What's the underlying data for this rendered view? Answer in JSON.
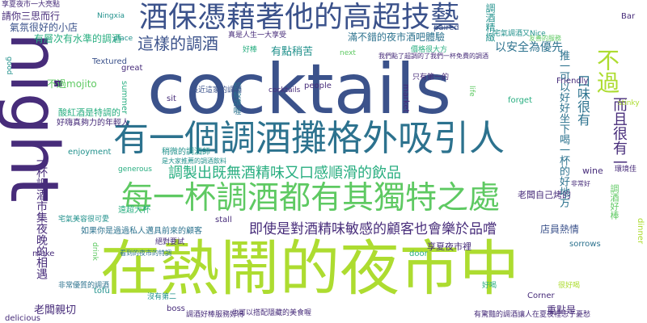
{
  "palette": {
    "purple": "#440154",
    "indigo": "#472c7a",
    "blue": "#3b528b",
    "steel": "#2c728e",
    "teal": "#21918c",
    "green": "#28ae80",
    "lime": "#5ec962",
    "yellowgreen": "#addc30",
    "yellow": "#fde725"
  },
  "words": [
    {
      "text": "cocktails",
      "color": "#3b528b"
    },
    {
      "text": "night",
      "color": "#472c7a"
    },
    {
      "text": "在熱鬧的夜市中",
      "color": "#addc30"
    },
    {
      "text": "每一杯調酒都有其獨特之處",
      "color": "#5ec962"
    },
    {
      "text": "有一個調酒攤格外吸引人",
      "color": "#2c728e"
    },
    {
      "text": "酒保憑藉著他的高超技藝",
      "color": "#3b528b"
    },
    {
      "text": "調製出既無酒精味又口感順滑的飲品",
      "color": "#28ae80"
    },
    {
      "text": "即使是對酒精味敏感的顧客也會樂於品嚐",
      "color": "#472c7a"
    },
    {
      "text": "這樣的調酒",
      "color": "#3b528b"
    },
    {
      "text": "不過",
      "color": "#addc30"
    },
    {
      "text": "有點稍苦",
      "color": "#21918c"
    },
    {
      "text": "滿不錯的夜市酒吧體驗",
      "color": "#2c728e"
    },
    {
      "text": "以安全為優先",
      "color": "#2c728e"
    },
    {
      "text": "有層次有水準的調酒",
      "color": "#28ae80"
    },
    {
      "text": "請你三思而行",
      "color": "#472c7a"
    },
    {
      "text": "氣氛很好的小店",
      "color": "#3b528b"
    },
    {
      "text": "不過mojito",
      "color": "#5ec962"
    },
    {
      "text": "酸紅酒是特調的",
      "color": "#28ae80"
    },
    {
      "text": "好嗨真夠力的年輕人",
      "color": "#472c7a"
    },
    {
      "text": "真是人生一大享受",
      "color": "#472c7a"
    },
    {
      "text": "調酒精緻",
      "color": "#21918c"
    },
    {
      "text": "調酒好棒",
      "color": "#5ec962"
    },
    {
      "text": "而且很有一",
      "color": "#472c7a"
    },
    {
      "text": "口味很有",
      "color": "#2c728e"
    },
    {
      "text": "老闆自己烤的",
      "color": "#472c7a"
    },
    {
      "text": "享夏夜市裡",
      "color": "#472c7a"
    },
    {
      "text": "店員熱情",
      "color": "#3b528b"
    },
    {
      "text": "老闆親切",
      "color": "#472c7a"
    },
    {
      "text": "重點是",
      "color": "#472c7a"
    },
    {
      "text": "只有第一的",
      "color": "#472c7a"
    },
    {
      "text": "遠超大杯",
      "color": "#28ae80"
    },
    {
      "text": "如果你是過過私人邁具前來的顧客",
      "color": "#2c728e"
    },
    {
      "text": "超級讚喔",
      "color": "#2c728e"
    },
    {
      "text": "稍微的調酒師",
      "color": "#21918c"
    },
    {
      "text": "非常優質的調酒",
      "color": "#2c728e"
    },
    {
      "text": "也可以搭配隱藏的美食喔",
      "color": "#472c7a"
    },
    {
      "text": "有驚豔的調酒讓人在夏夜裡忘了憂愁",
      "color": "#472c7a"
    },
    {
      "text": "調酒好棒服務好得",
      "color": "#472c7a"
    },
    {
      "text": "沒有第二",
      "color": "#21918c"
    },
    {
      "text": "最近這家的調酒",
      "color": "#3b528b"
    },
    {
      "text": "絕對要試",
      "color": "#472c7a"
    },
    {
      "text": "宅氣美容很可愛",
      "color": "#21918c"
    },
    {
      "text": "享夏夜市一大亮點",
      "color": "#472c7a"
    },
    {
      "text": "一杯調酒市集夜晚的相遇",
      "color": "#472c7a"
    },
    {
      "text": "我們點了超調的了我們一杯免費的調酒",
      "color": "#472c7a"
    },
    {
      "text": "推一可以好好坐下喝一杯的好地方",
      "color": "#2c728e"
    },
    {
      "text": "看到的夜市的特調",
      "color": "#2c728e"
    },
    {
      "text": "是大家推薦的調酒飲料",
      "color": "#21918c"
    },
    {
      "text": "很好喝",
      "color": "#addc30"
    },
    {
      "text": "宅氣調酒又Nice",
      "color": "#21918c"
    },
    {
      "text": "價格很大方",
      "color": "#28ae80"
    },
    {
      "text": "友善的服務",
      "color": "#5ec962"
    },
    {
      "text": "cocktails",
      "color": "#472c7a"
    },
    {
      "text": "Ningxia",
      "color": "#21918c"
    },
    {
      "text": "Textured",
      "color": "#3b528b"
    },
    {
      "text": "good",
      "color": "#21918c"
    },
    {
      "text": "place",
      "color": "#21918c"
    },
    {
      "text": "great",
      "color": "#472c7a"
    },
    {
      "text": "summer",
      "color": "#28ae80"
    },
    {
      "text": "sit",
      "color": "#472c7a"
    },
    {
      "text": "people",
      "color": "#472c7a"
    },
    {
      "text": "market",
      "color": "#472c7a"
    },
    {
      "text": "Friendly",
      "color": "#472c7a"
    },
    {
      "text": "life",
      "color": "#5ec962"
    },
    {
      "text": "next",
      "color": "#5ec962"
    },
    {
      "text": "paired",
      "color": "#3b528b"
    },
    {
      "text": "forget",
      "color": "#28ae80"
    },
    {
      "text": "Bar",
      "color": "#472c7a"
    },
    {
      "text": "stinky",
      "color": "#addc30"
    },
    {
      "text": "wine",
      "color": "#472c7a"
    },
    {
      "text": "enjoyment",
      "color": "#21918c"
    },
    {
      "text": "generous",
      "color": "#28ae80"
    },
    {
      "text": "drink",
      "color": "#5ec962"
    },
    {
      "text": "make",
      "color": "#472c7a"
    },
    {
      "text": "stall",
      "color": "#472c7a"
    },
    {
      "text": "door",
      "color": "#28ae80"
    },
    {
      "text": "sorrows",
      "color": "#2c728e"
    },
    {
      "text": "Corner",
      "color": "#472c7a"
    },
    {
      "text": "boss",
      "color": "#472c7a"
    },
    {
      "text": "tofu",
      "color": "#21918c"
    },
    {
      "text": "delicious",
      "color": "#472c7a"
    },
    {
      "text": "dinner",
      "color": "#addc30"
    },
    {
      "text": "非常好",
      "color": "#472c7a"
    },
    {
      "text": "環境佳",
      "color": "#472c7a"
    },
    {
      "text": "好棒",
      "color": "#28ae80"
    },
    {
      "text": "好喝",
      "color": "#28ae80"
    }
  ]
}
